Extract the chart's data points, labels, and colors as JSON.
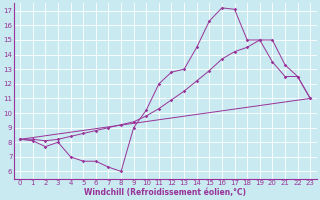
{
  "background_color": "#c8eaf0",
  "grid_color": "#ffffff",
  "line_color": "#993399",
  "xlabel": "Windchill (Refroidissement éolien,°C)",
  "xlim": [
    -0.5,
    23.5
  ],
  "ylim": [
    5.5,
    17.5
  ],
  "yticks": [
    6,
    7,
    8,
    9,
    10,
    11,
    12,
    13,
    14,
    15,
    16,
    17
  ],
  "xticks": [
    0,
    1,
    2,
    3,
    4,
    5,
    6,
    7,
    8,
    9,
    10,
    11,
    12,
    13,
    14,
    15,
    16,
    17,
    18,
    19,
    20,
    21,
    22,
    23
  ],
  "line1_x": [
    0,
    1,
    2,
    3,
    4,
    5,
    6,
    7,
    8,
    9,
    10,
    11,
    12,
    13,
    14,
    15,
    16,
    17,
    18,
    19,
    20,
    21,
    22,
    23
  ],
  "line1_y": [
    8.2,
    8.1,
    7.7,
    8.0,
    7.0,
    6.7,
    6.7,
    6.3,
    6.0,
    9.0,
    10.2,
    12.0,
    12.8,
    13.0,
    14.5,
    16.3,
    17.2,
    17.1,
    15.0,
    15.0,
    13.5,
    12.5,
    12.5,
    11.0
  ],
  "line2_x": [
    0,
    23
  ],
  "line2_y": [
    8.2,
    11.0
  ],
  "line3_x": [
    0,
    1,
    2,
    3,
    4,
    5,
    6,
    7,
    8,
    9,
    10,
    11,
    12,
    13,
    14,
    15,
    16,
    17,
    18,
    19,
    20,
    21,
    22,
    23
  ],
  "line3_y": [
    8.2,
    8.2,
    8.1,
    8.2,
    8.4,
    8.6,
    8.8,
    9.0,
    9.2,
    9.4,
    9.8,
    10.3,
    10.9,
    11.5,
    12.2,
    12.9,
    13.7,
    14.2,
    14.5,
    15.0,
    15.0,
    13.3,
    12.5,
    11.0
  ],
  "xlabel_fontsize": 5.5,
  "tick_labelsize": 5.0,
  "linewidth": 0.7,
  "markersize": 1.8
}
